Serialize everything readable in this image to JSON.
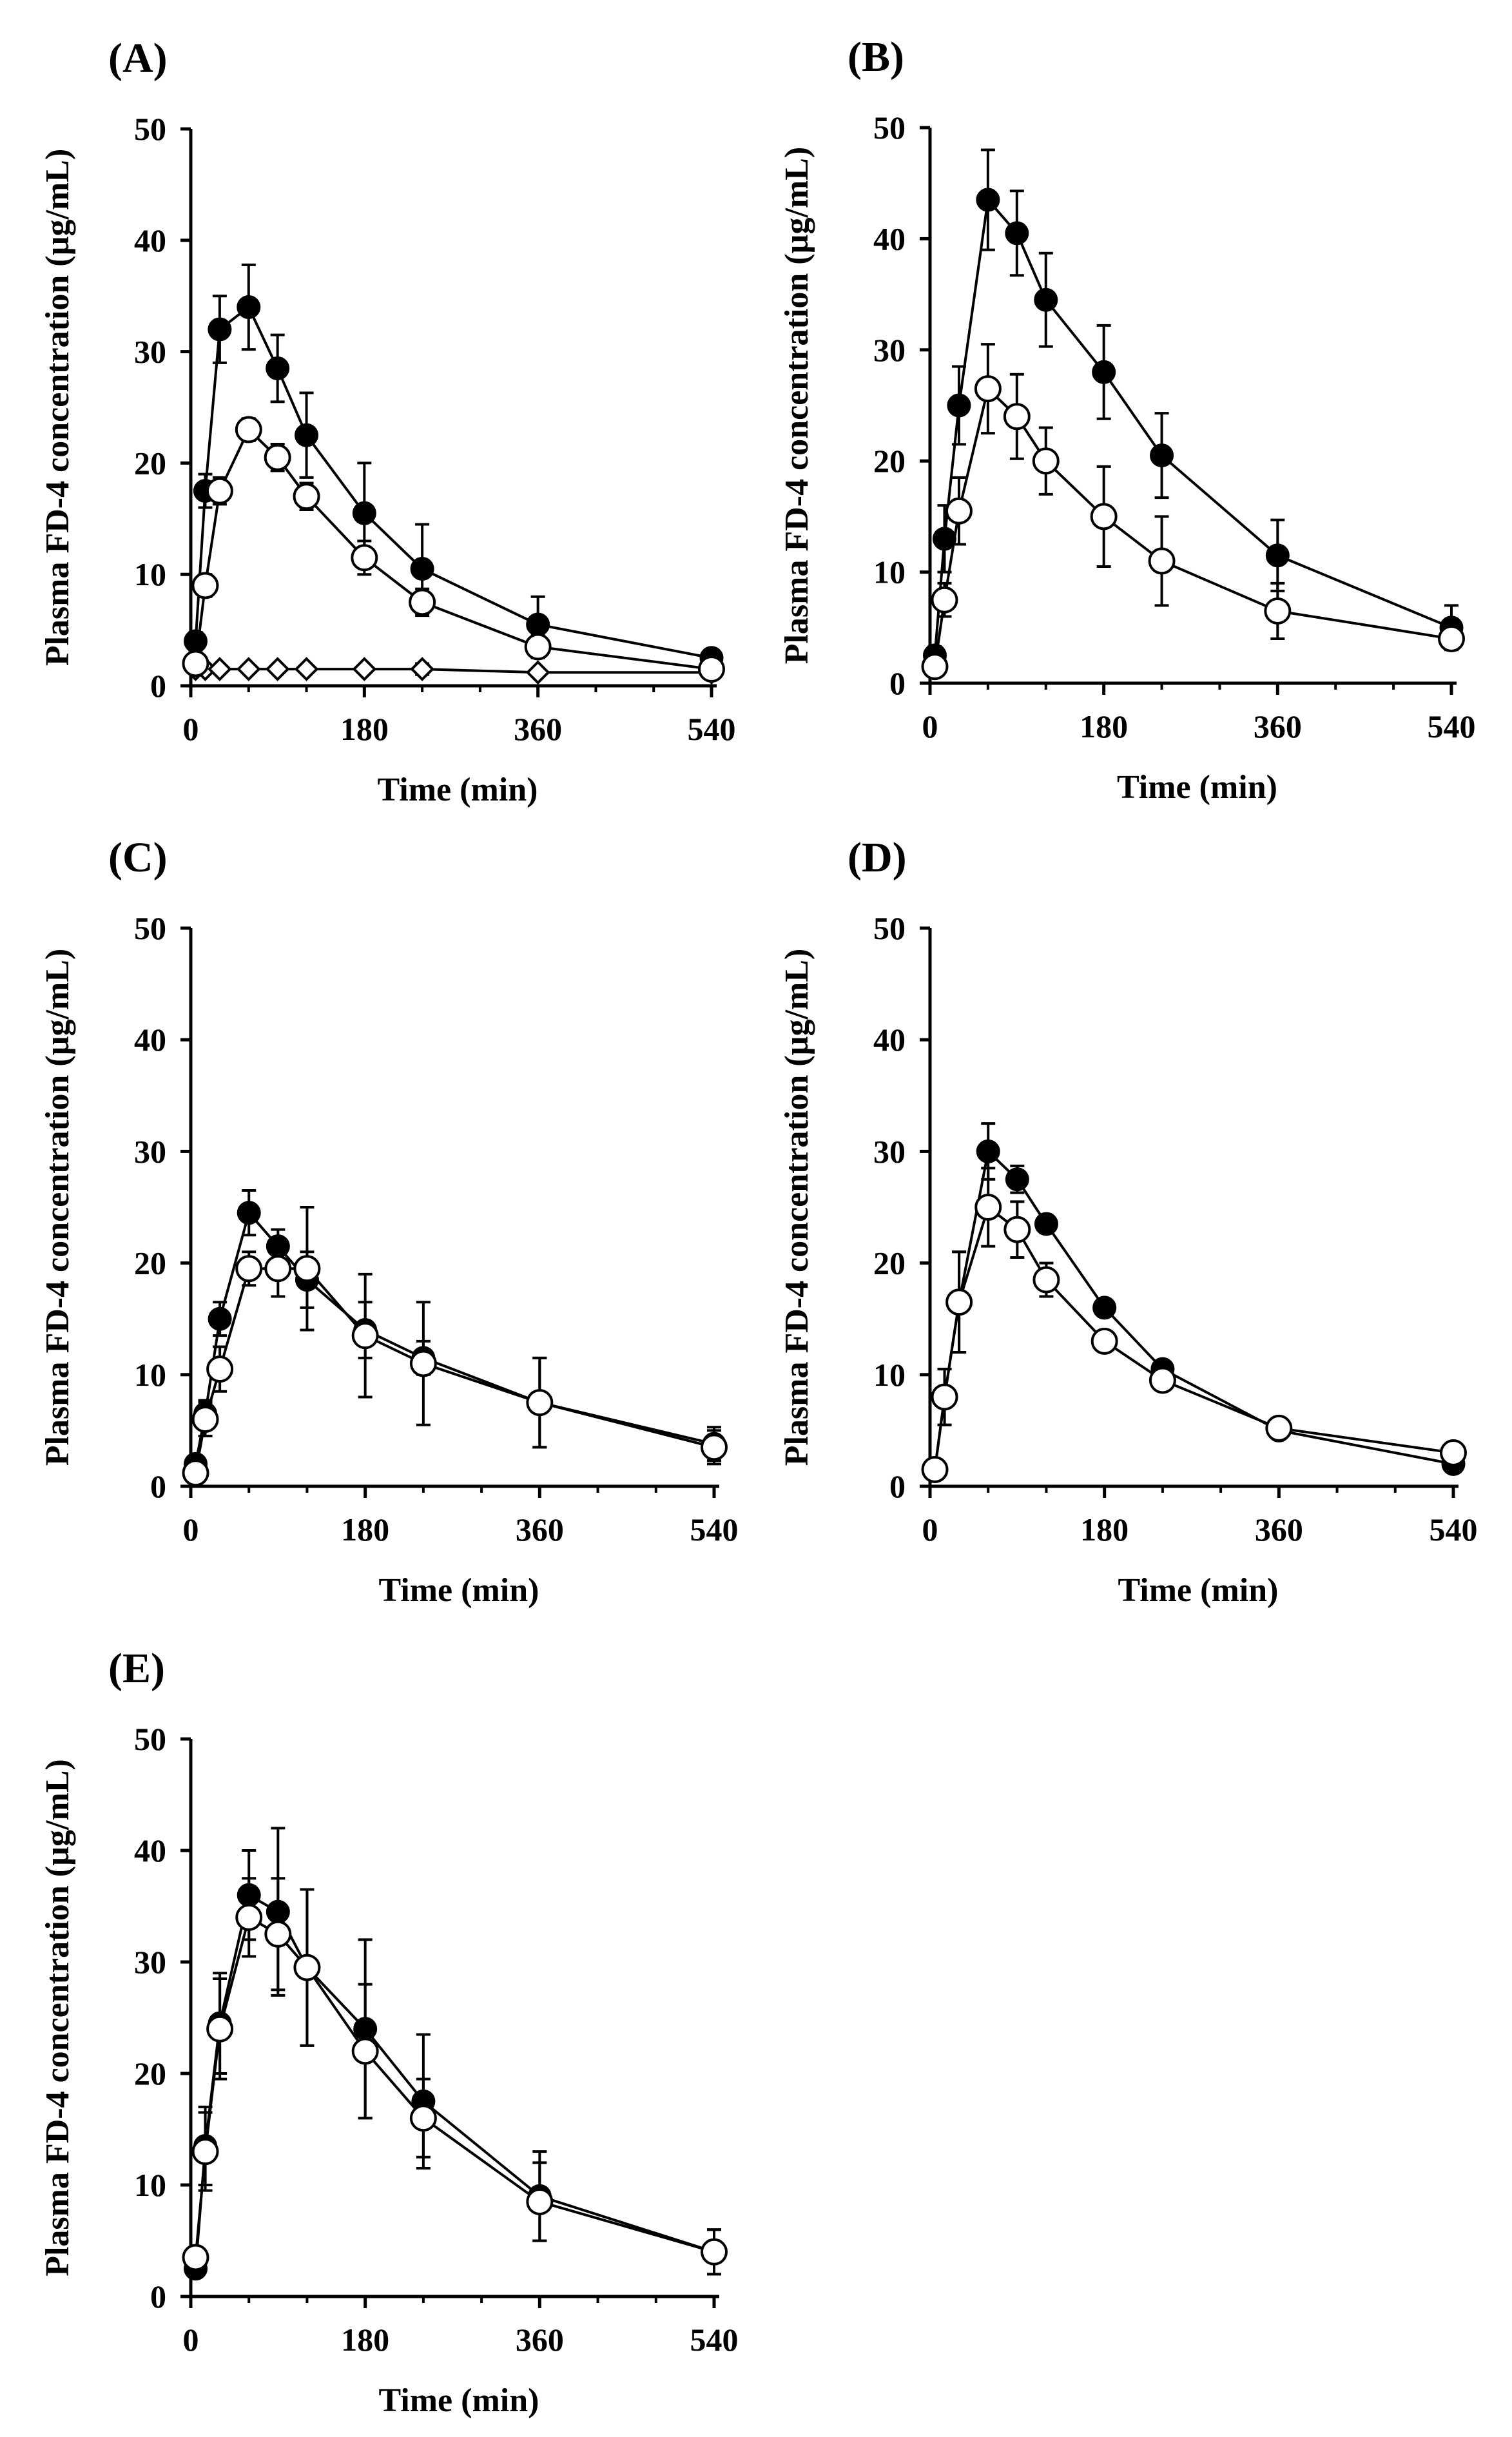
{
  "chart_data": [
    {
      "panel": "(A)",
      "type": "line",
      "xlabel": "Time (min)",
      "ylabel": "Plasma FD-4 concentration (µg/mL)",
      "xlim": [
        0,
        540
      ],
      "ylim": [
        0,
        50
      ],
      "xticks": [
        0,
        180,
        360,
        540
      ],
      "yticks": [
        0,
        10,
        20,
        30,
        40,
        50
      ],
      "x": [
        5,
        15,
        30,
        60,
        90,
        120,
        180,
        240,
        360,
        540
      ],
      "series": [
        {
          "name": "filled circle",
          "marker": "filled-circle",
          "values": [
            4,
            17.5,
            32,
            34,
            28.5,
            22.5,
            15.5,
            10.5,
            5.5,
            2.5
          ],
          "errors": [
            0.8,
            1.5,
            3,
            3.8,
            3,
            3.8,
            4.5,
            4,
            2.5,
            0.6
          ]
        },
        {
          "name": "open circle",
          "marker": "open-circle",
          "values": [
            2,
            9,
            17.5,
            23,
            20.5,
            17,
            11.5,
            7.5,
            3.5,
            1.5
          ],
          "errors": [
            0.5,
            1,
            1.2,
            1,
            1.2,
            1.2,
            1.5,
            1.2,
            1,
            0.5
          ]
        },
        {
          "name": "open diamond",
          "marker": "open-diamond",
          "values": [
            1.5,
            1.5,
            1.5,
            1.5,
            1.5,
            1.5,
            1.5,
            1.5,
            1.2,
            1.2
          ],
          "errors": [
            0.3,
            0.3,
            0.3,
            0.3,
            0.3,
            0.3,
            0.3,
            0.5,
            0.3,
            0.3
          ]
        }
      ]
    },
    {
      "panel": "(B)",
      "type": "line",
      "xlabel": "Time (min)",
      "ylabel": "Plasma FD-4 concentration (µg/mL)",
      "xlim": [
        0,
        540
      ],
      "ylim": [
        0,
        50
      ],
      "xticks": [
        0,
        180,
        360,
        540
      ],
      "yticks": [
        0,
        10,
        20,
        30,
        40,
        50
      ],
      "x": [
        5,
        15,
        30,
        60,
        90,
        120,
        180,
        240,
        360,
        540
      ],
      "series": [
        {
          "name": "filled circle",
          "marker": "filled-circle",
          "values": [
            2.5,
            13,
            25,
            43.5,
            40.5,
            34.5,
            28,
            20.5,
            11.5,
            5
          ],
          "errors": [
            0.8,
            3,
            3.5,
            4.5,
            3.8,
            4.2,
            4.2,
            3.8,
            3.2,
            2
          ]
        },
        {
          "name": "open circle",
          "marker": "open-circle",
          "values": [
            1.5,
            7.5,
            15.5,
            26.5,
            24,
            20,
            15,
            11,
            6.5,
            4
          ],
          "errors": [
            0.5,
            1.5,
            3,
            4,
            3.8,
            3,
            4.5,
            4,
            2.5,
            0.8
          ]
        }
      ]
    },
    {
      "panel": "(C)",
      "type": "line",
      "xlabel": "Time (min)",
      "ylabel": "Plasma FD-4 concentration (µg/mL)",
      "xlim": [
        0,
        540
      ],
      "ylim": [
        0,
        50
      ],
      "xticks": [
        0,
        180,
        360,
        540
      ],
      "yticks": [
        0,
        10,
        20,
        30,
        40,
        50
      ],
      "x": [
        5,
        15,
        30,
        60,
        90,
        120,
        180,
        240,
        360,
        540
      ],
      "series": [
        {
          "name": "filled circle",
          "marker": "filled-circle",
          "values": [
            2,
            6.5,
            15,
            24.5,
            21.5,
            18.5,
            14,
            11.5,
            7.5,
            3.8
          ],
          "errors": [
            0.5,
            1.2,
            1.5,
            2,
            1.5,
            2.5,
            2.5,
            1.5,
            4,
            1.5
          ]
        },
        {
          "name": "open circle",
          "marker": "open-circle",
          "values": [
            1.2,
            6,
            10.5,
            19.5,
            19.5,
            19.5,
            13.5,
            11,
            7.5,
            3.5
          ],
          "errors": [
            0.5,
            1.5,
            2,
            1.5,
            2.5,
            5.5,
            5.5,
            5.5,
            4,
            1.5
          ]
        }
      ]
    },
    {
      "panel": "(D)",
      "type": "line",
      "xlabel": "Time (min)",
      "ylabel": "Plasma FD-4 concentration (µg/mL)",
      "xlim": [
        0,
        540
      ],
      "ylim": [
        0,
        50
      ],
      "xticks": [
        0,
        180,
        360,
        540
      ],
      "yticks": [
        0,
        10,
        20,
        30,
        40,
        50
      ],
      "x": [
        5,
        15,
        30,
        60,
        90,
        120,
        180,
        240,
        360,
        540
      ],
      "series": [
        {
          "name": "filled circle",
          "marker": "filled-circle",
          "values": [
            1.5,
            8,
            16.5,
            30,
            27.5,
            23.5,
            16,
            10.5,
            5,
            2
          ],
          "errors": [
            0.4,
            2.5,
            4.5,
            2.5,
            1.2,
            0.8,
            0.5,
            0.5,
            0.4,
            0.4
          ]
        },
        {
          "name": "open circle",
          "marker": "open-circle",
          "values": [
            1.5,
            8,
            16.5,
            25,
            23,
            18.5,
            13,
            9.5,
            5.2,
            3
          ],
          "errors": [
            0.4,
            2.5,
            4.5,
            3.5,
            2.5,
            1.5,
            0.8,
            0.8,
            0.4,
            0.4
          ]
        }
      ]
    },
    {
      "panel": "(E)",
      "type": "line",
      "xlabel": "Time (min)",
      "ylabel": "Plasma FD-4 concentration (µg/mL)",
      "xlim": [
        0,
        540
      ],
      "ylim": [
        0,
        50
      ],
      "xticks": [
        0,
        180,
        360,
        540
      ],
      "yticks": [
        0,
        10,
        20,
        30,
        40,
        50
      ],
      "x": [
        5,
        15,
        30,
        60,
        90,
        120,
        180,
        240,
        360,
        540
      ],
      "series": [
        {
          "name": "filled circle",
          "marker": "filled-circle",
          "values": [
            2.5,
            13.5,
            24.5,
            36,
            34.5,
            29.5,
            24,
            17.5,
            9,
            4
          ],
          "errors": [
            0.6,
            3.5,
            4.5,
            4,
            7.5,
            7,
            8,
            6,
            4,
            2
          ]
        },
        {
          "name": "open circle",
          "marker": "open-circle",
          "values": [
            3.5,
            13,
            24,
            34,
            32.5,
            29.5,
            22,
            16,
            8.5,
            4
          ],
          "errors": [
            0.6,
            3.5,
            4.5,
            3.5,
            5,
            7,
            6,
            3.5,
            3.5,
            2
          ]
        }
      ]
    }
  ]
}
